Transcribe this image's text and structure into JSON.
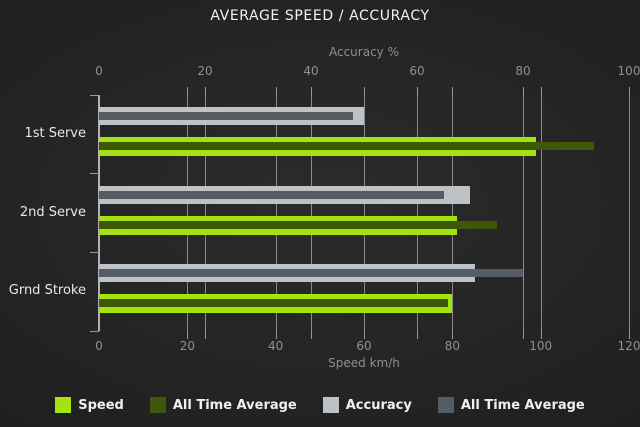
{
  "title": "AVERAGE SPEED / ACCURACY",
  "colors": {
    "background_center": "#2b2b2b",
    "background_edge": "#191919",
    "grid": "#8a8a8a",
    "axis_line": "#b2b2b2",
    "tick_label": "#8f8f8f",
    "category_label": "#e8e8e8",
    "title_text": "#f2f2f2",
    "legend_text": "#f0f0f0",
    "speed": "#a3e30f",
    "speed_all_time_average": "#3d5808",
    "accuracy": "#bcc2c6",
    "accuracy_all_time_average": "#555c64"
  },
  "chart_data": {
    "type": "bar",
    "orientation": "horizontal",
    "title": "AVERAGE SPEED / ACCURACY",
    "categories": [
      "1st Serve",
      "2nd Serve",
      "Grnd Stroke"
    ],
    "series": [
      {
        "name": "Speed",
        "axis": "bottom",
        "color": "#a3e30f",
        "values": [
          99,
          81,
          80
        ]
      },
      {
        "name": "All Time Average",
        "axis": "bottom",
        "color": "#3d5808",
        "values": [
          112,
          90,
          79
        ]
      },
      {
        "name": "Accuracy",
        "axis": "top",
        "color": "#bcc2c6",
        "values": [
          50,
          70,
          71
        ]
      },
      {
        "name": "All Time Average",
        "axis": "top",
        "color": "#555c64",
        "values": [
          48,
          65,
          80
        ]
      }
    ],
    "axes": {
      "top": {
        "label": "Accuracy %",
        "min": 0,
        "max": 100,
        "ticks": [
          0,
          20,
          40,
          60,
          80,
          100
        ]
      },
      "bottom": {
        "label": "Speed km/h",
        "min": 0,
        "max": 120,
        "ticks": [
          0,
          20,
          40,
          60,
          80,
          100,
          120
        ]
      }
    },
    "grid": true,
    "legend_position": "bottom",
    "legend": [
      {
        "label": "Speed",
        "color": "#a3e30f"
      },
      {
        "label": "All Time Average",
        "color": "#3d5808"
      },
      {
        "label": "Accuracy",
        "color": "#bcc2c6"
      },
      {
        "label": "All Time Average",
        "color": "#555c64"
      }
    ]
  }
}
